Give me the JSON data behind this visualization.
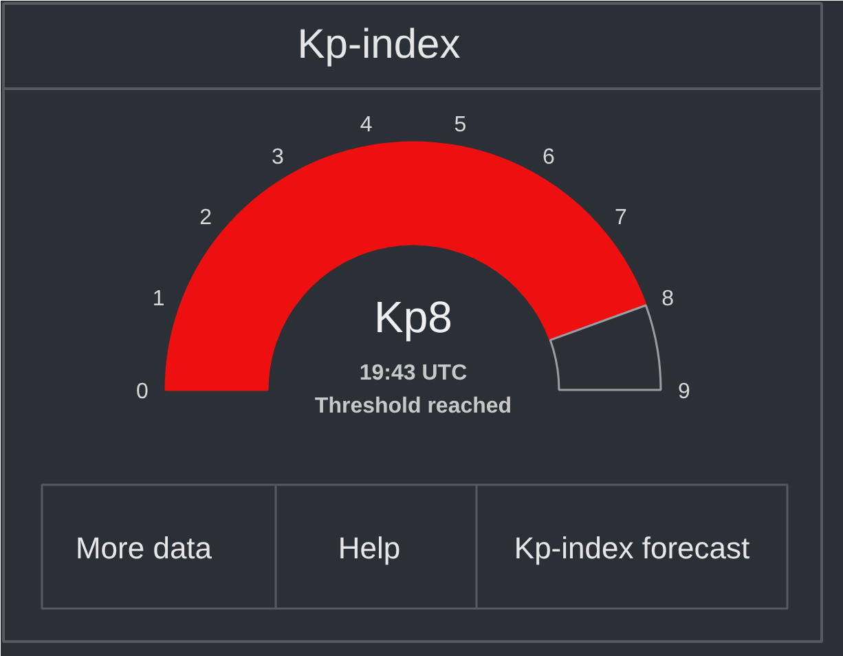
{
  "chart_data": {
    "type": "donut",
    "title": "Kp-index",
    "categories": [
      null,
      null
    ],
    "values": [
      88.9,
      11.1
    ],
    "colors": [
      "#ee1010",
      "#2b3036"
    ],
    "annotations": [
      "0",
      "1",
      "2",
      "3",
      "4",
      "5",
      "6",
      "7",
      "8",
      "9",
      "Kp8",
      "19:43 UTC",
      "Threshold reached",
      "More data",
      "Help",
      "Kp-index forecast"
    ]
  }
}
